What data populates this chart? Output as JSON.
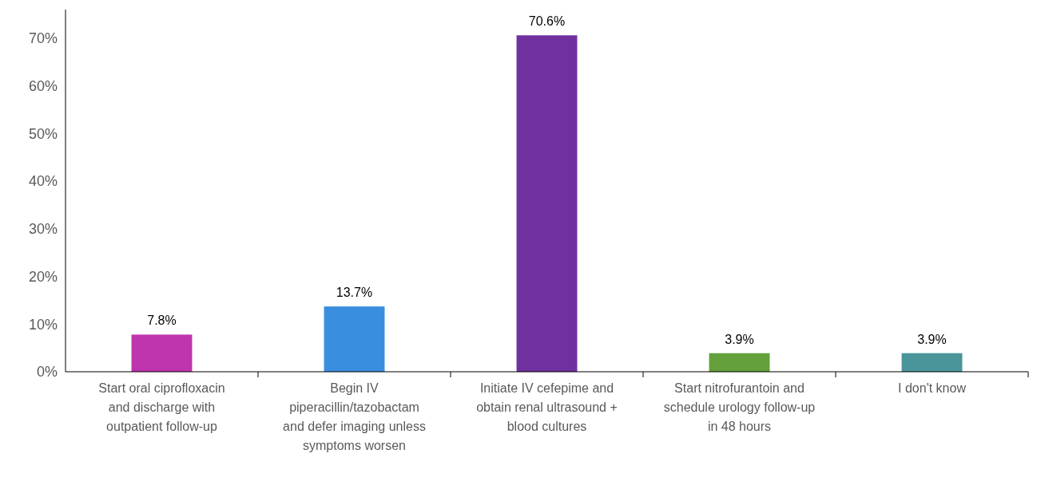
{
  "chart_data": {
    "type": "bar",
    "categories": [
      "Start oral ciprofloxacin and discharge with outpatient follow-up",
      "Begin IV piperacillin/tazobactam and defer imaging unless symptoms worsen",
      "Initiate IV cefepime and obtain renal ultrasound + blood cultures",
      "Start nitrofurantoin and schedule urology follow-up in 48 hours",
      "I don't know"
    ],
    "values": [
      7.8,
      13.7,
      70.6,
      3.9,
      3.9
    ],
    "colors": [
      "#bf35ae",
      "#3a8ee0",
      "#7030a0",
      "#64a03c",
      "#4a9599"
    ],
    "value_labels": [
      "7.8%",
      "13.7%",
      "70.6%",
      "3.9%",
      "3.9%"
    ],
    "ylim": [
      0,
      76
    ],
    "yticks": [
      {
        "value": 0,
        "label": "0%"
      },
      {
        "value": 10,
        "label": "10%"
      },
      {
        "value": 20,
        "label": "20%"
      },
      {
        "value": 30,
        "label": "30%"
      },
      {
        "value": 40,
        "label": "40%"
      },
      {
        "value": 50,
        "label": "50%"
      },
      {
        "value": 60,
        "label": "60%"
      },
      {
        "value": 70,
        "label": "70%"
      }
    ]
  }
}
